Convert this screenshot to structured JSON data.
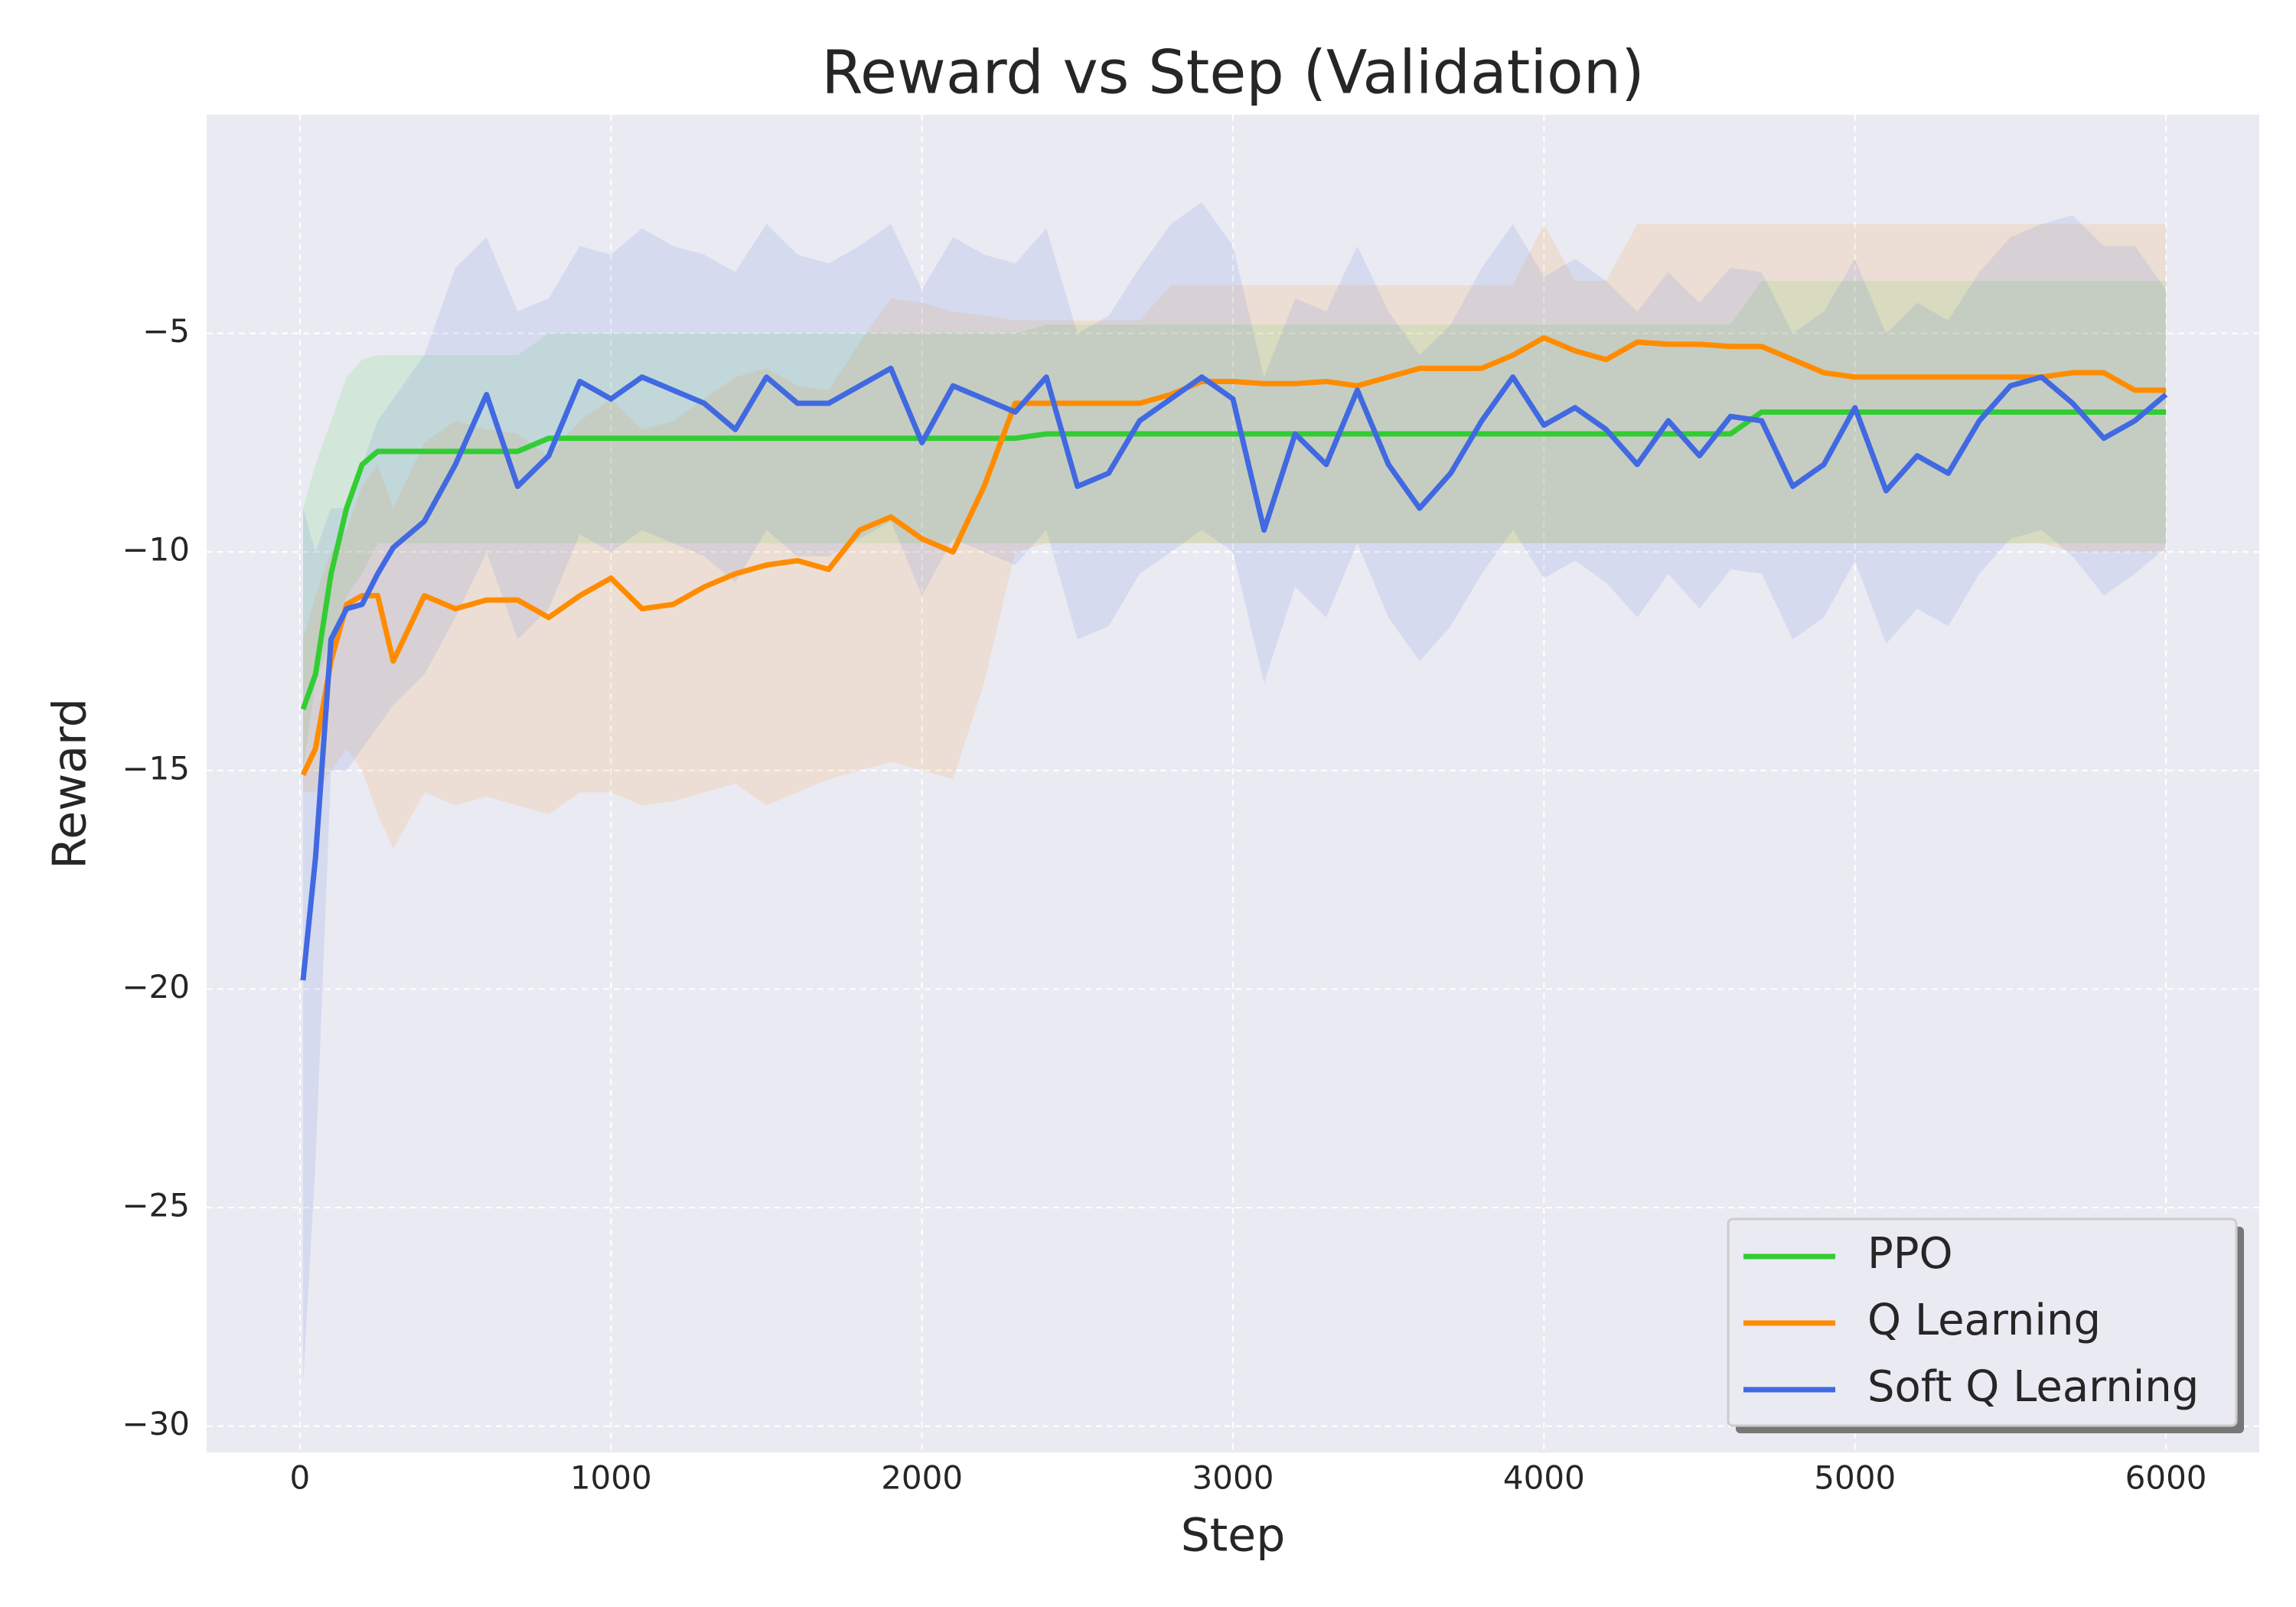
{
  "chart_data": {
    "type": "line",
    "title": "Reward vs Step (Validation)",
    "x_label": "Step",
    "y_label": "Reward",
    "x": [
      10,
      50,
      100,
      150,
      200,
      250,
      300,
      400,
      500,
      600,
      700,
      800,
      900,
      1000,
      1100,
      1200,
      1300,
      1400,
      1500,
      1600,
      1700,
      1800,
      1900,
      2000,
      2100,
      2200,
      2300,
      2400,
      2500,
      2600,
      2700,
      2800,
      2900,
      3000,
      3100,
      3200,
      3300,
      3400,
      3500,
      3600,
      3700,
      3800,
      3900,
      4000,
      4100,
      4200,
      4300,
      4400,
      4500,
      4600,
      4700,
      4800,
      4900,
      5000,
      5100,
      5200,
      5300,
      5400,
      5500,
      5600,
      5700,
      5800,
      5900,
      6000
    ],
    "xlim": [
      -300,
      6300
    ],
    "xticks": [
      0,
      1000,
      2000,
      3000,
      4000,
      5000,
      6000
    ],
    "ylim": [
      -30.6,
      0
    ],
    "yticks": [
      {
        "value": -30,
        "label": "−30"
      },
      {
        "value": -25,
        "label": "−25"
      },
      {
        "value": -20,
        "label": "−20"
      },
      {
        "value": -15,
        "label": "−15"
      },
      {
        "value": -10,
        "label": "−10"
      },
      {
        "value": -5,
        "label": "−5"
      }
    ],
    "grid": true,
    "legend": "lower right",
    "series": [
      {
        "name": "PPO",
        "color": "#32cd32",
        "values": [
          -13.6,
          -12.8,
          -10.5,
          -9.0,
          -8.0,
          -7.7,
          -7.7,
          -7.7,
          -7.7,
          -7.7,
          -7.7,
          -7.4,
          -7.4,
          -7.4,
          -7.4,
          -7.4,
          -7.4,
          -7.4,
          -7.4,
          -7.4,
          -7.4,
          -7.4,
          -7.4,
          -7.4,
          -7.4,
          -7.4,
          -7.4,
          -7.3,
          -7.3,
          -7.3,
          -7.3,
          -7.3,
          -7.3,
          -7.3,
          -7.3,
          -7.3,
          -7.3,
          -7.3,
          -7.3,
          -7.3,
          -7.3,
          -7.3,
          -7.3,
          -7.3,
          -7.3,
          -7.3,
          -7.3,
          -7.3,
          -7.3,
          -7.3,
          -6.8,
          -6.8,
          -6.8,
          -6.8,
          -6.8,
          -6.8,
          -6.8,
          -6.8,
          -6.8,
          -6.8,
          -6.8,
          -6.8,
          -6.8,
          -6.8
        ],
        "lower": [
          -15,
          -13,
          -12,
          -11,
          -10.5,
          -9.8,
          -9.8,
          -9.8,
          -9.8,
          -9.8,
          -9.8,
          -9.8,
          -9.8,
          -9.8,
          -9.8,
          -9.8,
          -9.8,
          -9.8,
          -9.8,
          -9.8,
          -9.8,
          -9.8,
          -9.8,
          -9.8,
          -9.8,
          -9.8,
          -9.8,
          -9.8,
          -9.8,
          -9.8,
          -9.8,
          -9.8,
          -9.8,
          -9.8,
          -9.8,
          -9.8,
          -9.8,
          -9.8,
          -9.8,
          -9.8,
          -9.8,
          -9.8,
          -9.8,
          -9.8,
          -9.8,
          -9.8,
          -9.8,
          -9.8,
          -9.8,
          -9.8,
          -9.8,
          -9.8,
          -9.8,
          -9.8,
          -9.8,
          -9.8,
          -9.8,
          -9.8,
          -9.8,
          -9.8,
          -9.8,
          -9.8,
          -9.8,
          -9.8
        ],
        "upper": [
          -9,
          -8,
          -7,
          -6,
          -5.6,
          -5.5,
          -5.5,
          -5.5,
          -5.5,
          -5.5,
          -5.5,
          -5.0,
          -5.0,
          -5.0,
          -5.0,
          -5.0,
          -5.0,
          -5.0,
          -5.0,
          -5.0,
          -5.0,
          -5.0,
          -5.0,
          -5.0,
          -5.0,
          -5.0,
          -5.0,
          -4.8,
          -4.8,
          -4.8,
          -4.8,
          -4.8,
          -4.8,
          -4.8,
          -4.8,
          -4.8,
          -4.8,
          -4.8,
          -4.8,
          -4.8,
          -4.8,
          -4.8,
          -4.8,
          -4.8,
          -4.8,
          -4.8,
          -4.8,
          -4.8,
          -4.8,
          -4.8,
          -3.8,
          -3.8,
          -3.8,
          -3.8,
          -3.8,
          -3.8,
          -3.8,
          -3.8,
          -3.8,
          -3.8,
          -3.8,
          -3.8,
          -3.8,
          -3.8
        ]
      },
      {
        "name": "Q Learning",
        "color": "#ff8c00",
        "values": [
          -15.1,
          -14.5,
          -12.5,
          -11.2,
          -11.0,
          -11.0,
          -12.5,
          -11.0,
          -11.3,
          -11.1,
          -11.1,
          -11.5,
          -11.0,
          -10.6,
          -11.3,
          -11.2,
          -10.8,
          -10.5,
          -10.3,
          -10.2,
          -10.4,
          -9.5,
          -9.2,
          -9.7,
          -10.0,
          -8.5,
          -6.6,
          -6.6,
          -6.6,
          -6.6,
          -6.6,
          -6.4,
          -6.1,
          -6.1,
          -6.15,
          -6.15,
          -6.1,
          -6.2,
          -6.0,
          -5.8,
          -5.8,
          -5.8,
          -5.5,
          -5.1,
          -5.4,
          -5.6,
          -5.2,
          -5.25,
          -5.25,
          -5.3,
          -5.3,
          -5.6,
          -5.9,
          -6.0,
          -6.0,
          -6.0,
          -6.0,
          -6.0,
          -6.0,
          -6.0,
          -5.9,
          -5.9,
          -6.3,
          -6.3
        ],
        "lower": [
          -15.5,
          -15.5,
          -15,
          -14.5,
          -15,
          -16,
          -16.8,
          -15.5,
          -15.8,
          -15.6,
          -15.8,
          -16,
          -15.5,
          -15.5,
          -15.8,
          -15.7,
          -15.5,
          -15.3,
          -15.8,
          -15.5,
          -15.2,
          -15.0,
          -14.8,
          -15.0,
          -15.2,
          -13,
          -10,
          -9.8,
          -9.8,
          -9.8,
          -9.8,
          -9.8,
          -9.8,
          -9.8,
          -9.8,
          -9.8,
          -9.8,
          -9.8,
          -9.8,
          -9.8,
          -9.8,
          -9.8,
          -9.8,
          -9.8,
          -9.8,
          -9.8,
          -9.8,
          -9.8,
          -9.8,
          -9.8,
          -9.8,
          -9.8,
          -9.8,
          -9.8,
          -9.8,
          -9.8,
          -9.8,
          -9.8,
          -9.8,
          -9.8,
          -10,
          -10,
          -10,
          -10
        ],
        "upper": [
          -12,
          -11,
          -10,
          -9.5,
          -8.5,
          -8,
          -9,
          -7.5,
          -7,
          -7.2,
          -7.3,
          -7.8,
          -7,
          -6.5,
          -7.2,
          -7,
          -6.5,
          -6,
          -5.8,
          -6.2,
          -6.3,
          -5.2,
          -4.2,
          -4.3,
          -4.5,
          -4.6,
          -4.7,
          -4.7,
          -4.7,
          -4.7,
          -4.7,
          -3.9,
          -3.9,
          -3.9,
          -3.9,
          -3.9,
          -3.9,
          -3.9,
          -3.9,
          -3.9,
          -3.9,
          -3.9,
          -3.9,
          -2.5,
          -3.8,
          -3.8,
          -2.5,
          -2.5,
          -2.5,
          -2.5,
          -2.5,
          -2.5,
          -2.5,
          -2.5,
          -2.5,
          -2.5,
          -2.5,
          -2.5,
          -2.5,
          -2.5,
          -2.5,
          -2.5,
          -2.5,
          -2.5
        ]
      },
      {
        "name": "Soft Q Learning",
        "color": "#4169e1",
        "values": [
          -19.8,
          -17,
          -12,
          -11.3,
          -11.2,
          -10.5,
          -9.9,
          -9.3,
          -8.0,
          -6.4,
          -8.5,
          -7.8,
          -6.1,
          -6.5,
          -6.0,
          -6.3,
          -6.6,
          -7.2,
          -6.0,
          -6.6,
          -6.6,
          -6.2,
          -5.8,
          -7.5,
          -6.2,
          -6.5,
          -6.8,
          -6.0,
          -8.5,
          -8.2,
          -7.0,
          -6.5,
          -6.0,
          -6.5,
          -9.5,
          -7.3,
          -8.0,
          -6.3,
          -8.0,
          -9.0,
          -8.2,
          -7.0,
          -6.0,
          -7.1,
          -6.7,
          -7.2,
          -8.0,
          -7.0,
          -7.8,
          -6.9,
          -7.0,
          -8.5,
          -8.0,
          -6.7,
          -8.6,
          -7.8,
          -8.2,
          -7.0,
          -6.2,
          -6.0,
          -6.6,
          -7.4,
          -7.0,
          -6.4
        ],
        "lower": [
          -29,
          -24,
          -15,
          -15,
          -14.5,
          -14,
          -13.5,
          -12.8,
          -11.5,
          -10,
          -12,
          -11.3,
          -9.6,
          -10,
          -9.5,
          -9.8,
          -10.1,
          -10.7,
          -9.5,
          -10.1,
          -10.1,
          -9.7,
          -9.3,
          -11,
          -9.7,
          -10,
          -10.3,
          -9.5,
          -12,
          -11.7,
          -10.5,
          -10,
          -9.5,
          -10,
          -13,
          -10.8,
          -11.5,
          -9.8,
          -11.5,
          -12.5,
          -11.7,
          -10.5,
          -9.5,
          -10.6,
          -10.2,
          -10.7,
          -11.5,
          -10.5,
          -11.3,
          -10.4,
          -10.5,
          -12,
          -11.5,
          -10.2,
          -12.1,
          -11.3,
          -11.7,
          -10.5,
          -9.7,
          -9.5,
          -10.1,
          -11,
          -10.5,
          -9.9
        ],
        "upper": [
          -9,
          -10,
          -9,
          -9,
          -8,
          -7,
          -6.5,
          -5.5,
          -3.5,
          -2.8,
          -4.5,
          -4.2,
          -3.0,
          -3.2,
          -2.6,
          -3.0,
          -3.2,
          -3.6,
          -2.5,
          -3.2,
          -3.4,
          -3.0,
          -2.5,
          -4.0,
          -2.8,
          -3.2,
          -3.4,
          -2.6,
          -5.0,
          -4.6,
          -3.5,
          -2.5,
          -2.0,
          -3.0,
          -6.0,
          -4.2,
          -4.5,
          -3.0,
          -4.5,
          -5.5,
          -4.8,
          -3.5,
          -2.5,
          -3.7,
          -3.3,
          -3.8,
          -4.5,
          -3.6,
          -4.3,
          -3.5,
          -3.6,
          -5.0,
          -4.5,
          -3.3,
          -5.0,
          -4.3,
          -4.7,
          -3.6,
          -2.8,
          -2.5,
          -2.3,
          -3.0,
          -3.0,
          -4.0
        ]
      }
    ]
  }
}
